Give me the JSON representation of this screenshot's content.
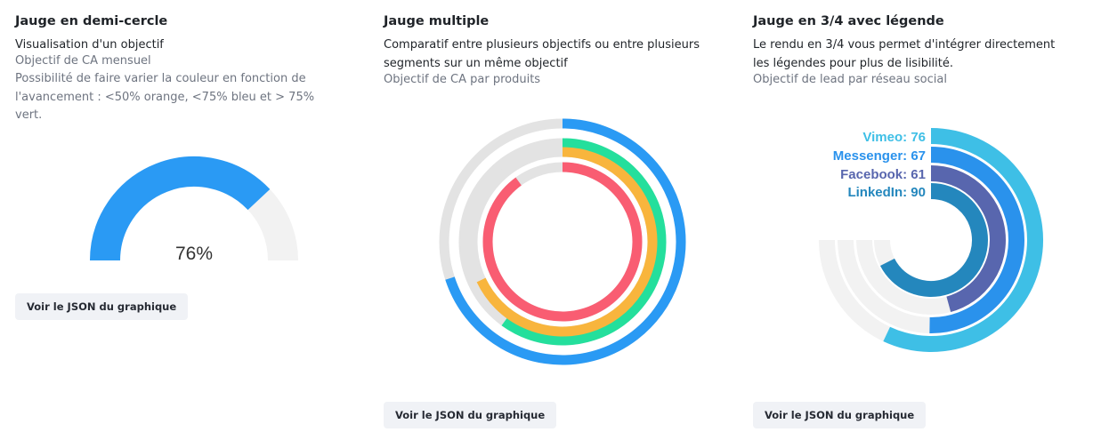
{
  "panels": [
    {
      "title": "Jauge en demi-cercle",
      "description": "Visualisation d'un objectif",
      "subtitle_1": "Objectif de CA mensuel",
      "subtitle_2": "Possibilité de faire varier la couleur en fonction de l'avancement : <50% orange, <75% bleu et > 75% vert.",
      "button_label": "Voir le JSON du graphique"
    },
    {
      "title": "Jauge multiple",
      "description": "Comparatif entre plusieurs objectifs ou entre plusieurs segments sur un même objectif",
      "subtitle_1": "Objectif de CA par produits",
      "button_label": "Voir le JSON du graphique"
    },
    {
      "title": "Jauge en 3/4 avec légende",
      "description": "Le rendu en 3/4 vous permet d'intégrer directement les légendes pour plus de lisibilité.",
      "subtitle_1": "Objectif de lead par réseau social",
      "button_label": "Voir le JSON du graphique"
    }
  ],
  "chart_data": [
    {
      "type": "gauge",
      "shape": "semi-circle",
      "value": 76,
      "max": 100,
      "center_label": "76%",
      "color": "#2a9af4",
      "track_color": "#f2f2f2"
    },
    {
      "type": "gauge",
      "shape": "multi-ring",
      "max": 100,
      "track_color": "#e3e3e3",
      "series": [
        {
          "value": 70,
          "color": "#2a9af4"
        },
        {
          "value": 60,
          "color": "#24df9c"
        },
        {
          "value": 68,
          "color": "#f8b53d"
        },
        {
          "value": 90,
          "color": "#f95d72"
        }
      ]
    },
    {
      "type": "gauge",
      "shape": "three-quarter",
      "max": 100,
      "track_color": "#f2f2f2",
      "series": [
        {
          "name": "Vimeo",
          "value": 76,
          "label": "Vimeo: 76",
          "color": "#3ebfe6"
        },
        {
          "name": "Messenger",
          "value": 67,
          "label": "Messenger: 67",
          "color": "#2a92ec"
        },
        {
          "name": "Facebook",
          "value": 61,
          "label": "Facebook: 61",
          "color": "#5866ae"
        },
        {
          "name": "LinkedIn",
          "value": 90,
          "label": "LinkedIn: 90",
          "color": "#2487bd"
        }
      ]
    }
  ]
}
